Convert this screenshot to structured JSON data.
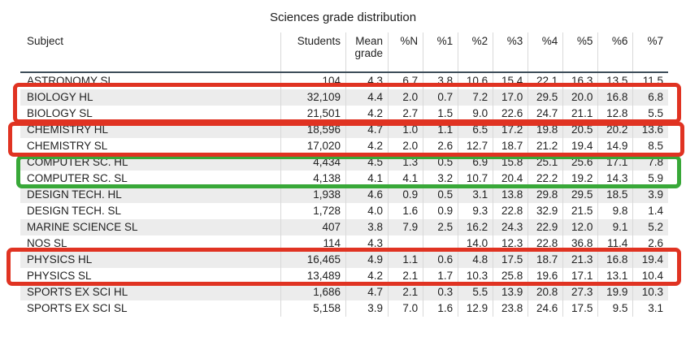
{
  "title": "Sciences grade distribution",
  "chart_data": {
    "type": "table",
    "title": "Sciences grade distribution",
    "columns": [
      "Subject",
      "Students",
      "Mean grade",
      "%N",
      "%1",
      "%2",
      "%3",
      "%4",
      "%5",
      "%6",
      "%7"
    ],
    "rows": [
      [
        "ASTRONOMY SL",
        "104",
        "4.3",
        "6.7",
        "3.8",
        "10.6",
        "15.4",
        "22.1",
        "16.3",
        "13.5",
        "11.5"
      ],
      [
        "BIOLOGY HL",
        "32,109",
        "4.4",
        "2.0",
        "0.7",
        "7.2",
        "17.0",
        "29.5",
        "20.0",
        "16.8",
        "6.8"
      ],
      [
        "BIOLOGY SL",
        "21,501",
        "4.2",
        "2.7",
        "1.5",
        "9.0",
        "22.6",
        "24.7",
        "21.1",
        "12.8",
        "5.5"
      ],
      [
        "CHEMISTRY HL",
        "18,596",
        "4.7",
        "1.0",
        "1.1",
        "6.5",
        "17.2",
        "19.8",
        "20.5",
        "20.2",
        "13.6"
      ],
      [
        "CHEMISTRY SL",
        "17,020",
        "4.2",
        "2.0",
        "2.6",
        "12.7",
        "18.7",
        "21.2",
        "19.4",
        "14.9",
        "8.5"
      ],
      [
        "COMPUTER SC. HL",
        "4,434",
        "4.5",
        "1.3",
        "0.5",
        "6.9",
        "15.8",
        "25.1",
        "25.6",
        "17.1",
        "7.8"
      ],
      [
        "COMPUTER SC. SL",
        "4,138",
        "4.1",
        "4.1",
        "3.2",
        "10.7",
        "20.4",
        "22.2",
        "19.2",
        "14.3",
        "5.9"
      ],
      [
        "DESIGN TECH. HL",
        "1,938",
        "4.6",
        "0.9",
        "0.5",
        "3.1",
        "13.8",
        "29.8",
        "29.5",
        "18.5",
        "3.9"
      ],
      [
        "DESIGN TECH. SL",
        "1,728",
        "4.0",
        "1.6",
        "0.9",
        "9.3",
        "22.8",
        "32.9",
        "21.5",
        "9.8",
        "1.4"
      ],
      [
        "MARINE SCIENCE SL",
        "407",
        "3.8",
        "7.9",
        "2.5",
        "16.2",
        "24.3",
        "22.9",
        "12.0",
        "9.1",
        "5.2"
      ],
      [
        "NOS SL",
        "114",
        "4.3",
        "",
        "",
        "14.0",
        "12.3",
        "22.8",
        "36.8",
        "11.4",
        "2.6"
      ],
      [
        "PHYSICS HL",
        "16,465",
        "4.9",
        "1.1",
        "0.6",
        "4.8",
        "17.5",
        "18.7",
        "21.3",
        "16.8",
        "19.4"
      ],
      [
        "PHYSICS SL",
        "13,489",
        "4.2",
        "2.1",
        "1.7",
        "10.3",
        "25.8",
        "19.6",
        "17.1",
        "13.1",
        "10.4"
      ],
      [
        "SPORTS EX SCI HL",
        "1,686",
        "4.7",
        "2.1",
        "0.3",
        "5.5",
        "13.9",
        "20.8",
        "27.3",
        "19.9",
        "10.3"
      ],
      [
        "SPORTS EX SCI SL",
        "5,158",
        "3.9",
        "7.0",
        "1.6",
        "12.9",
        "23.8",
        "24.6",
        "17.5",
        "9.5",
        "3.1"
      ]
    ],
    "layout": {
      "grid": "vertical column separators, alternating row stripes",
      "legend": "none"
    }
  },
  "annotations": [
    {
      "name": "biology-rows-highlight",
      "shape": "rectangle",
      "color": "#e03322",
      "around": "BIOLOGY HL and BIOLOGY SL"
    },
    {
      "name": "chemistry-rows-highlight",
      "shape": "rectangle",
      "color": "#e03322",
      "around": "CHEMISTRY HL and CHEMISTRY SL"
    },
    {
      "name": "computer-sc-rows-highlight",
      "shape": "rectangle",
      "color": "#38a838",
      "around": "COMPUTER SC. HL and COMPUTER SC. SL"
    },
    {
      "name": "physics-rows-highlight",
      "shape": "rectangle",
      "color": "#e03322",
      "around": "PHYSICS HL and PHYSICS SL"
    }
  ],
  "colors": {
    "row_stripe": "#ececec",
    "header_rule": "#3c4d59",
    "grid_line": "#d9d9d9",
    "red_annotation": "#e03322",
    "green_annotation": "#38a838"
  }
}
